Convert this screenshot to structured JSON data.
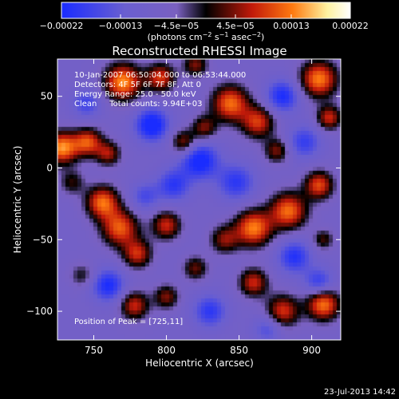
{
  "chart_data": {
    "type": "heatmap",
    "title": "Reconstructed RHESSI Image",
    "xlabel": "Heliocentric X (arcsec)",
    "ylabel": "Heliocentric Y (arcsec)",
    "xlim": [
      725,
      920
    ],
    "ylim": [
      -120,
      76
    ],
    "xticks": [
      750,
      800,
      850,
      900
    ],
    "xtick_labels": [
      "750",
      "800",
      "850",
      "900"
    ],
    "yticks": [
      50,
      0,
      -50,
      -100
    ],
    "ytick_labels": [
      "50",
      "0",
      "−50",
      "−100"
    ],
    "colorbar": {
      "range": [
        -0.00022,
        0.00022
      ],
      "ticks": [
        -0.00022,
        -0.00013,
        -4.5e-05,
        4.5e-05,
        0.00013,
        0.00022
      ],
      "tick_labels": [
        "−0.00022",
        "−0.00013",
        "−4.5e−05",
        "4.5e−05",
        "0.00013",
        "0.00022"
      ],
      "unit_parts": [
        "(photons cm",
        "−2",
        " s",
        "−1",
        " asec",
        "−2",
        ")"
      ],
      "colors": [
        "#1a2cff",
        "#6a5fd0",
        "#7a60c0",
        "#000000",
        "#c21a0a",
        "#ff7a10",
        "#fff2a0",
        "#ffffff"
      ]
    },
    "info_lines": [
      "10-Jan-2007 06:50:04.000 to 06:53:44.000",
      "Detectors: 4F 5F 6F 7F 8F, Att 0",
      "Energy Range: 25.0 - 50.0 keV",
      "Clean     Total counts: 9.94E+03"
    ],
    "peak_label": "Position of Peak = [725,11]",
    "peak_position": [
      725,
      11
    ],
    "date_stamp": "23-Jul-2013 14:42",
    "blobs": [
      {
        "x": 770,
        "y": 60,
        "v": 1.0,
        "s": 9
      },
      {
        "x": 796,
        "y": 63,
        "v": 0.75,
        "s": 7
      },
      {
        "x": 820,
        "y": 72,
        "v": 0.55,
        "s": 6
      },
      {
        "x": 844,
        "y": 45,
        "v": 0.9,
        "s": 9
      },
      {
        "x": 863,
        "y": 32,
        "v": 0.75,
        "s": 8
      },
      {
        "x": 876,
        "y": 12,
        "v": 0.55,
        "s": 6
      },
      {
        "x": 905,
        "y": 62,
        "v": 0.95,
        "s": 9
      },
      {
        "x": 912,
        "y": 35,
        "v": 0.7,
        "s": 6
      },
      {
        "x": 728,
        "y": 14,
        "v": 1.0,
        "s": 8
      },
      {
        "x": 746,
        "y": 18,
        "v": 0.8,
        "s": 7
      },
      {
        "x": 760,
        "y": 10,
        "v": 0.6,
        "s": 6
      },
      {
        "x": 756,
        "y": -24,
        "v": 0.9,
        "s": 8
      },
      {
        "x": 768,
        "y": -42,
        "v": 0.85,
        "s": 9
      },
      {
        "x": 780,
        "y": -60,
        "v": 0.7,
        "s": 7
      },
      {
        "x": 800,
        "y": -40,
        "v": 0.7,
        "s": 7
      },
      {
        "x": 812,
        "y": 18,
        "v": 0.6,
        "s": 6
      },
      {
        "x": 826,
        "y": 28,
        "v": 0.55,
        "s": 6
      },
      {
        "x": 840,
        "y": -50,
        "v": 0.55,
        "s": 7
      },
      {
        "x": 860,
        "y": -42,
        "v": 0.95,
        "s": 9
      },
      {
        "x": 884,
        "y": -30,
        "v": 0.9,
        "s": 9
      },
      {
        "x": 905,
        "y": -12,
        "v": 0.8,
        "s": 7
      },
      {
        "x": 908,
        "y": -50,
        "v": 0.45,
        "s": 5
      },
      {
        "x": 778,
        "y": -96,
        "v": 0.7,
        "s": 7
      },
      {
        "x": 800,
        "y": -90,
        "v": 0.55,
        "s": 6
      },
      {
        "x": 820,
        "y": -70,
        "v": 0.5,
        "s": 6
      },
      {
        "x": 860,
        "y": -80,
        "v": 0.7,
        "s": 7
      },
      {
        "x": 880,
        "y": -100,
        "v": 0.75,
        "s": 8
      },
      {
        "x": 908,
        "y": -95,
        "v": 0.95,
        "s": 8
      },
      {
        "x": 735,
        "y": -10,
        "v": 0.4,
        "s": 6
      },
      {
        "x": 742,
        "y": -75,
        "v": 0.35,
        "s": 6
      },
      {
        "x": 790,
        "y": 30,
        "v": -0.8,
        "s": 8
      },
      {
        "x": 823,
        "y": 5,
        "v": -0.75,
        "s": 9
      },
      {
        "x": 805,
        "y": -12,
        "v": -0.55,
        "s": 8
      },
      {
        "x": 880,
        "y": 50,
        "v": -0.65,
        "s": 8
      },
      {
        "x": 895,
        "y": 18,
        "v": -0.5,
        "s": 8
      },
      {
        "x": 905,
        "y": -80,
        "v": -0.55,
        "s": 7
      },
      {
        "x": 848,
        "y": -10,
        "v": -0.55,
        "s": 9
      },
      {
        "x": 760,
        "y": -82,
        "v": -0.65,
        "s": 8
      },
      {
        "x": 830,
        "y": -100,
        "v": -0.55,
        "s": 8
      },
      {
        "x": 888,
        "y": -62,
        "v": -0.6,
        "s": 8
      },
      {
        "x": 745,
        "y": 45,
        "v": -0.45,
        "s": 7
      },
      {
        "x": 785,
        "y": -20,
        "v": -0.4,
        "s": 7
      },
      {
        "x": 870,
        "y": -112,
        "v": -0.4,
        "s": 7
      }
    ]
  }
}
